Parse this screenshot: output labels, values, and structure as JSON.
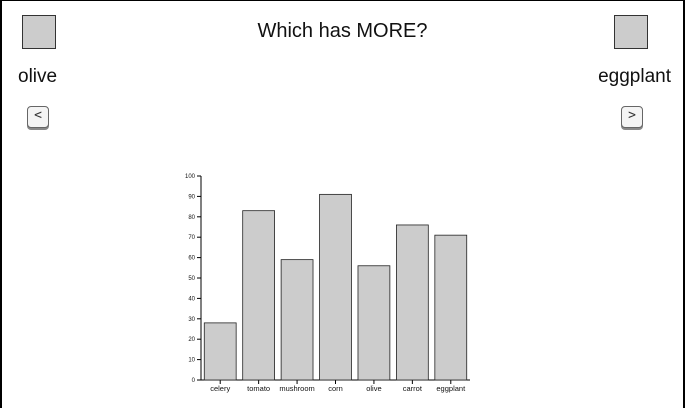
{
  "header": {
    "title": "Which has MORE?"
  },
  "choices": {
    "left": {
      "label": "olive",
      "swatch_color": "#cccccc",
      "nav_glyph": "<"
    },
    "right": {
      "label": "eggplant",
      "swatch_color": "#cccccc",
      "nav_glyph": ">"
    }
  },
  "chart_data": {
    "type": "bar",
    "categories": [
      "celery",
      "tomato",
      "mushroom",
      "corn",
      "olive",
      "carrot",
      "eggplant"
    ],
    "values": [
      28,
      83,
      59,
      91,
      56,
      76,
      71
    ],
    "ylim": [
      0,
      100
    ],
    "yticks": [
      0,
      10,
      20,
      30,
      40,
      50,
      60,
      70,
      80,
      90,
      100
    ],
    "bar_color": "#cccccc",
    "grid": false,
    "title": "",
    "xlabel": "",
    "ylabel": ""
  }
}
